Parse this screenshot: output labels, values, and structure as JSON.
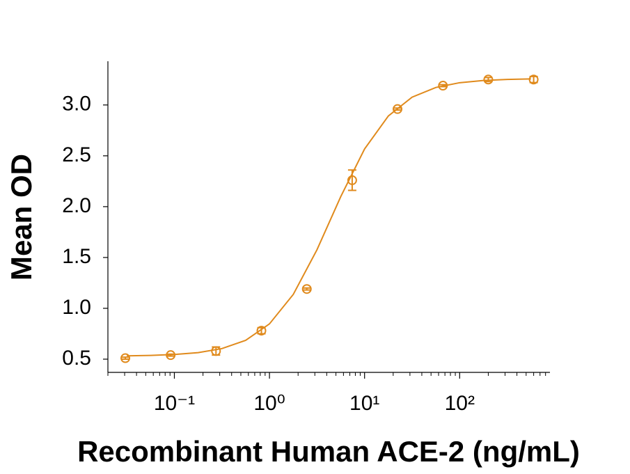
{
  "chart_data": {
    "type": "scatter",
    "x_label": "Recombinant Human ACE-2 (ng/mL)",
    "y_label": "Mean OD",
    "color": "#e08a1c",
    "x_log": true,
    "x": [
      0.0305,
      0.0914,
      0.274,
      0.823,
      2.47,
      7.41,
      22.2,
      66.7,
      200,
      600
    ],
    "values": [
      0.51,
      0.54,
      0.58,
      0.78,
      1.19,
      2.26,
      2.96,
      3.19,
      3.25,
      3.25
    ],
    "errors": [
      0.01,
      0.01,
      0.04,
      0.03,
      0.01,
      0.1,
      0.01,
      0.01,
      0.02,
      0.03
    ],
    "curve": {
      "x": [
        0.0316,
        0.0562,
        0.1,
        0.178,
        0.316,
        0.562,
        1,
        1.78,
        3.16,
        5.62,
        10,
        17.8,
        31.6,
        56.2,
        100,
        178,
        316,
        562
      ],
      "values": [
        0.533,
        0.537,
        0.546,
        0.564,
        0.604,
        0.685,
        0.847,
        1.137,
        1.576,
        2.099,
        2.567,
        2.892,
        3.077,
        3.172,
        3.219,
        3.241,
        3.251,
        3.256
      ]
    },
    "xlim": [
      0.02,
      890
    ],
    "ylim": [
      0.37,
      3.43
    ],
    "xticks": [
      {
        "value": 0.1,
        "label": "10⁻¹"
      },
      {
        "value": 1,
        "label": "10⁰"
      },
      {
        "value": 10,
        "label": "10¹"
      },
      {
        "value": 100,
        "label": "10²"
      }
    ],
    "xminorticks": [
      0.02,
      0.03,
      0.04,
      0.05,
      0.06,
      0.07,
      0.08,
      0.09,
      0.2,
      0.3,
      0.4,
      0.5,
      0.6,
      0.7,
      0.8,
      0.9,
      2,
      3,
      4,
      5,
      6,
      7,
      8,
      9,
      20,
      30,
      40,
      50,
      60,
      70,
      80,
      90,
      200,
      300,
      400,
      500,
      600,
      700,
      800
    ],
    "yticks": [
      0.5,
      {
        "value": 1,
        "label": "1.0"
      },
      1.5,
      {
        "value": 2,
        "label": "2.0"
      },
      2.5,
      {
        "value": 3,
        "label": "3.0"
      }
    ]
  }
}
